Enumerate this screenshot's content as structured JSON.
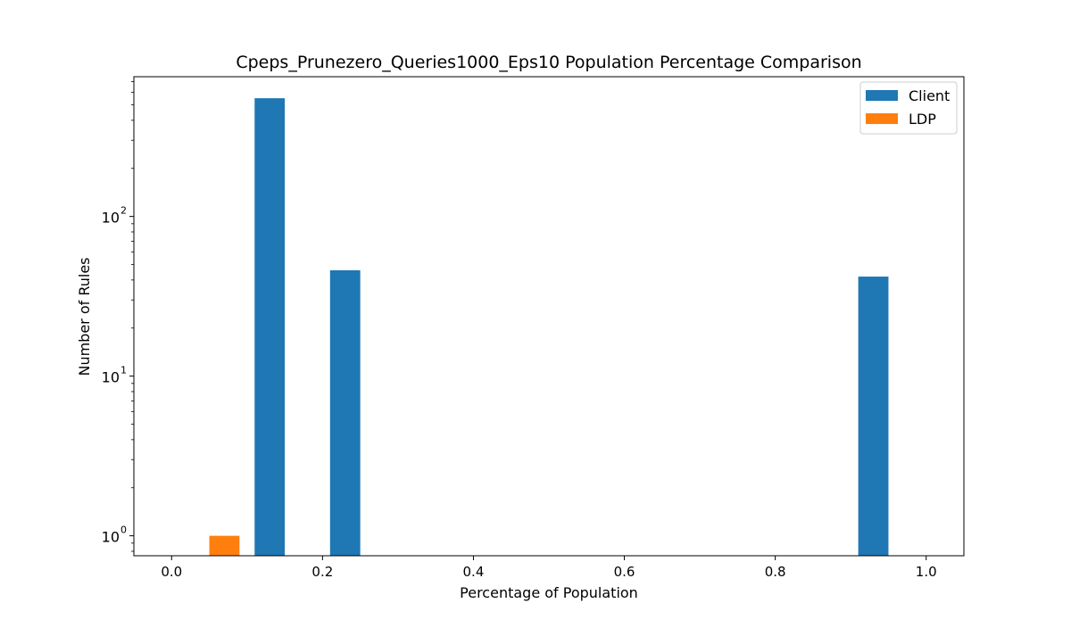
{
  "chart_data": {
    "type": "bar",
    "title": "Cpeps_Prunezero_Queries1000_Eps10 Population Percentage Comparison",
    "xlabel": "Percentage of Population",
    "ylabel": "Number of Rules",
    "yscale": "log",
    "xlim": [
      -0.05,
      1.05
    ],
    "ylim": [
      0.75,
      750
    ],
    "xticks": [
      0.0,
      0.2,
      0.4,
      0.6,
      0.8,
      1.0
    ],
    "xtick_labels": [
      "0.0",
      "0.2",
      "0.4",
      "0.6",
      "0.8",
      "1.0"
    ],
    "yticks": [
      1,
      10,
      100
    ],
    "ytick_labels": [
      {
        "base": "10",
        "exp": "0"
      },
      {
        "base": "10",
        "exp": "1"
      },
      {
        "base": "10",
        "exp": "2"
      }
    ],
    "grid": false,
    "legend_position": "top-right",
    "series": [
      {
        "name": "Client",
        "color": "#1f77b4",
        "bars": [
          {
            "x0": 0.11,
            "x1": 0.15,
            "value": 550
          },
          {
            "x0": 0.21,
            "x1": 0.25,
            "value": 46
          },
          {
            "x0": 0.91,
            "x1": 0.95,
            "value": 42
          }
        ]
      },
      {
        "name": "LDP",
        "color": "#ff7f0e",
        "bars": [
          {
            "x0": 0.05,
            "x1": 0.09,
            "value": 1
          }
        ]
      }
    ]
  }
}
